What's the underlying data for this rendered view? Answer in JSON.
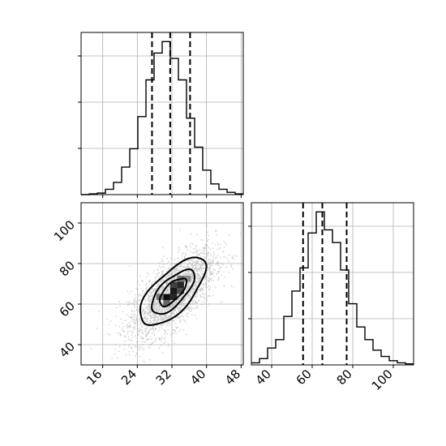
{
  "chart_data": {
    "type": "corner",
    "parameters": [
      {
        "ticks": [
          16,
          24,
          32,
          40,
          48
        ],
        "range": [
          11,
          48.5
        ]
      },
      {
        "ticks": [
          40,
          60,
          80,
          100
        ],
        "range": [
          30,
          110
        ]
      }
    ],
    "histograms": [
      {
        "bin_edges": [
          11.0,
          12.875,
          14.75,
          16.625,
          18.5,
          20.375,
          22.25,
          24.125,
          26.0,
          27.875,
          29.75,
          31.625,
          33.5,
          35.375,
          37.25,
          39.125,
          41.0,
          42.875,
          44.75,
          46.625,
          48.5
        ],
        "counts": [
          0,
          1,
          2,
          7,
          16,
          36,
          60,
          102,
          150,
          185,
          200,
          178,
          150,
          100,
          62,
          32,
          14,
          7,
          3,
          1
        ],
        "quantiles": [
          27.4,
          31.6,
          36.2
        ]
      },
      {
        "bin_edges": [
          30,
          34,
          38,
          42,
          46,
          50,
          54,
          58,
          62,
          66,
          70,
          74,
          78,
          82,
          86,
          90,
          94,
          98,
          102,
          106,
          110
        ],
        "counts": [
          2,
          6,
          16,
          24,
          46,
          70,
          92,
          125,
          145,
          128,
          116,
          90,
          58,
          36,
          24,
          14,
          8,
          4,
          2,
          1
        ],
        "quantiles": [
          55.5,
          65.0,
          77.0
        ]
      }
    ],
    "scatter": {
      "mean": [
        32.0,
        65.0
      ],
      "std": [
        5.0,
        11.0
      ],
      "correlation": 0.68,
      "n_points": 2600
    },
    "density_2d": {
      "cells": [
        {
          "x": 30.0,
          "y": 62.0,
          "level": 0.95
        },
        {
          "x": 31.6,
          "y": 62.0,
          "level": 0.85
        },
        {
          "x": 31.6,
          "y": 65.0,
          "level": 0.9
        },
        {
          "x": 31.6,
          "y": 68.0,
          "level": 0.75
        },
        {
          "x": 33.2,
          "y": 65.0,
          "level": 0.7
        },
        {
          "x": 33.2,
          "y": 68.0,
          "level": 0.85
        },
        {
          "x": 28.4,
          "y": 62.0,
          "level": 0.55
        },
        {
          "x": 30.0,
          "y": 59.0,
          "level": 0.6
        },
        {
          "x": 33.2,
          "y": 71.0,
          "level": 0.55
        },
        {
          "x": 34.8,
          "y": 71.0,
          "level": 0.45
        }
      ],
      "contours": [
        {
          "level": "inner",
          "scale": 1.0
        },
        {
          "level": "middle",
          "scale": 1.6
        },
        {
          "level": "outer",
          "scale": 2.45
        }
      ]
    },
    "colors": {
      "line": "#000000",
      "grid": "#b0b0b0",
      "points": "#9a9a9a"
    }
  }
}
